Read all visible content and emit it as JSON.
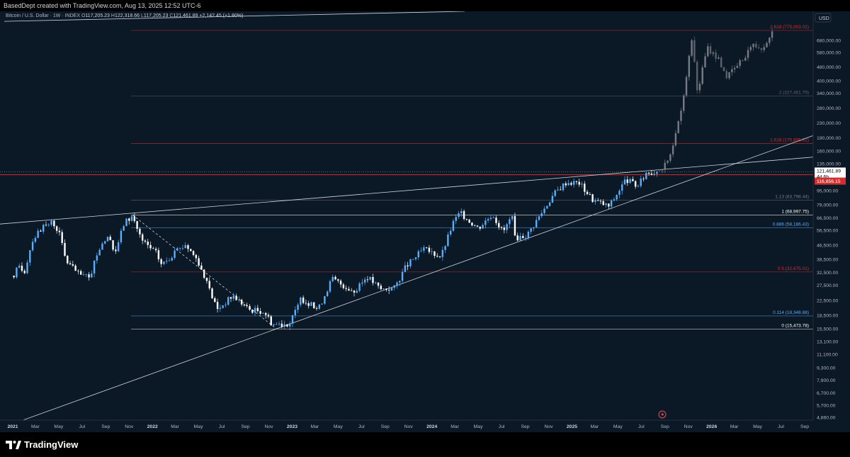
{
  "header": {
    "attribution": "BasedDept created with TradingView.com, Aug 13, 2025 12:52 UTC-6"
  },
  "legend": {
    "symbol": "Bitcoin / U.S. Dollar · 1W · INDEX",
    "open_label": "O",
    "open": "117,205.23",
    "high_label": "H",
    "high": "122,318.66",
    "low_label": "L",
    "low": "117,205.23",
    "close_label": "C",
    "close": "121,461.89",
    "change": "+2,142.45 (+1.80%)"
  },
  "footer": {
    "brand": "TradingView"
  },
  "colors": {
    "background": "#0b1826",
    "up_candle": "#5aaefc",
    "down_candle": "#ffffff",
    "projection_candle": "#787b86",
    "fib_line": "#5b6270",
    "red_line": "#d32f2f"
  },
  "chart_data": {
    "type": "candlestick",
    "scale": "log",
    "currency_label": "USD",
    "y_ticks": [
      4860,
      5700,
      6700,
      7900,
      9300,
      11100,
      13100,
      15500,
      18500,
      22500,
      27500,
      32500,
      38500,
      46500,
      56500,
      66500,
      79000,
      95000,
      135000,
      160000,
      190000,
      230000,
      280000,
      340000,
      400000,
      480000,
      580000,
      680000
    ],
    "y_tick_labels": [
      "4,860.00",
      "5,700.00",
      "6,700.00",
      "7,900.00",
      "9,300.00",
      "11,100.00",
      "13,100.00",
      "15,500.00",
      "18,500.00",
      "22,500.00",
      "27,500.00",
      "32,500.00",
      "38,500.00",
      "46,500.00",
      "56,500.00",
      "66,500.00",
      "79,000.00",
      "95,000.00",
      "135,000.00",
      "160,000.00",
      "190,000.00",
      "230,000.00",
      "280,000.00",
      "340,000.00",
      "400,000.00",
      "480,000.00",
      "580,000.00",
      "680,000.00"
    ],
    "x_ticks": [
      {
        "label": "2021",
        "date": "2021-01-01",
        "bold": true
      },
      {
        "label": "Mar",
        "date": "2021-03-01"
      },
      {
        "label": "May",
        "date": "2021-05-01"
      },
      {
        "label": "Jul",
        "date": "2021-07-01"
      },
      {
        "label": "Sep",
        "date": "2021-09-01"
      },
      {
        "label": "Nov",
        "date": "2021-11-01"
      },
      {
        "label": "2022",
        "date": "2022-01-01",
        "bold": true
      },
      {
        "label": "Mar",
        "date": "2022-03-01"
      },
      {
        "label": "May",
        "date": "2022-05-01"
      },
      {
        "label": "Jul",
        "date": "2022-07-01"
      },
      {
        "label": "Sep",
        "date": "2022-09-01"
      },
      {
        "label": "Nov",
        "date": "2022-11-01"
      },
      {
        "label": "2023",
        "date": "2023-01-01",
        "bold": true
      },
      {
        "label": "Mar",
        "date": "2023-03-01"
      },
      {
        "label": "May",
        "date": "2023-05-01"
      },
      {
        "label": "Jul",
        "date": "2023-07-01"
      },
      {
        "label": "Sep",
        "date": "2023-09-01"
      },
      {
        "label": "Nov",
        "date": "2023-11-01"
      },
      {
        "label": "2024",
        "date": "2024-01-01",
        "bold": true
      },
      {
        "label": "Mar",
        "date": "2024-03-01"
      },
      {
        "label": "May",
        "date": "2024-05-01"
      },
      {
        "label": "Jul",
        "date": "2024-07-01"
      },
      {
        "label": "Sep",
        "date": "2024-09-01"
      },
      {
        "label": "Nov",
        "date": "2024-11-01"
      },
      {
        "label": "2025",
        "date": "2025-01-01",
        "bold": true
      },
      {
        "label": "Mar",
        "date": "2025-03-01"
      },
      {
        "label": "May",
        "date": "2025-05-01"
      },
      {
        "label": "Jul",
        "date": "2025-07-01"
      },
      {
        "label": "Sep",
        "date": "2025-09-01"
      },
      {
        "label": "Nov",
        "date": "2025-11-01"
      },
      {
        "label": "2026",
        "date": "2026-01-01",
        "bold": true
      },
      {
        "label": "Mar",
        "date": "2026-03-01"
      },
      {
        "label": "May",
        "date": "2026-05-01"
      },
      {
        "label": "Jul",
        "date": "2026-07-01"
      },
      {
        "label": "Sep",
        "date": "2026-09-01"
      }
    ],
    "anchors": [
      {
        "date": "2021-01-01",
        "price": 28000
      },
      {
        "date": "2021-01-15",
        "price": 36000
      },
      {
        "date": "2021-02-01",
        "price": 33000
      },
      {
        "date": "2021-02-20",
        "price": 49000
      },
      {
        "date": "2021-03-10",
        "price": 56000
      },
      {
        "date": "2021-04-14",
        "price": 63000
      },
      {
        "date": "2021-05-01",
        "price": 56000
      },
      {
        "date": "2021-05-20",
        "price": 38000
      },
      {
        "date": "2021-06-20",
        "price": 32000
      },
      {
        "date": "2021-07-20",
        "price": 30000
      },
      {
        "date": "2021-08-20",
        "price": 48000
      },
      {
        "date": "2021-09-07",
        "price": 51000
      },
      {
        "date": "2021-09-25",
        "price": 42000
      },
      {
        "date": "2021-10-20",
        "price": 63000
      },
      {
        "date": "2021-11-10",
        "price": 68000
      },
      {
        "date": "2021-12-05",
        "price": 49000
      },
      {
        "date": "2022-01-10",
        "price": 42000
      },
      {
        "date": "2022-01-25",
        "price": 36000
      },
      {
        "date": "2022-03-28",
        "price": 47000
      },
      {
        "date": "2022-04-30",
        "price": 38000
      },
      {
        "date": "2022-05-20",
        "price": 29000
      },
      {
        "date": "2022-06-20",
        "price": 20000
      },
      {
        "date": "2022-07-30",
        "price": 24000
      },
      {
        "date": "2022-09-10",
        "price": 20000
      },
      {
        "date": "2022-10-20",
        "price": 19500
      },
      {
        "date": "2022-11-10",
        "price": 16500
      },
      {
        "date": "2022-12-25",
        "price": 16600
      },
      {
        "date": "2023-01-25",
        "price": 23000
      },
      {
        "date": "2023-03-10",
        "price": 20000
      },
      {
        "date": "2023-04-15",
        "price": 30000
      },
      {
        "date": "2023-06-15",
        "price": 25000
      },
      {
        "date": "2023-07-15",
        "price": 31000
      },
      {
        "date": "2023-08-20",
        "price": 26000
      },
      {
        "date": "2023-09-25",
        "price": 26500
      },
      {
        "date": "2023-10-25",
        "price": 35000
      },
      {
        "date": "2023-12-10",
        "price": 44000
      },
      {
        "date": "2024-01-25",
        "price": 40000
      },
      {
        "date": "2024-02-25",
        "price": 62000
      },
      {
        "date": "2024-03-14",
        "price": 71000
      },
      {
        "date": "2024-05-01",
        "price": 58000
      },
      {
        "date": "2024-06-07",
        "price": 70000
      },
      {
        "date": "2024-07-05",
        "price": 55000
      },
      {
        "date": "2024-07-28",
        "price": 68000
      },
      {
        "date": "2024-08-05",
        "price": 51000
      },
      {
        "date": "2024-09-06",
        "price": 53000
      },
      {
        "date": "2024-09-30",
        "price": 64000
      },
      {
        "date": "2024-11-15",
        "price": 91000
      },
      {
        "date": "2024-12-17",
        "price": 106000
      },
      {
        "date": "2025-01-20",
        "price": 105000
      },
      {
        "date": "2025-02-25",
        "price": 84000
      },
      {
        "date": "2025-04-08",
        "price": 77000
      },
      {
        "date": "2025-05-22",
        "price": 110000
      },
      {
        "date": "2025-06-22",
        "price": 100000
      },
      {
        "date": "2025-07-14",
        "price": 120000
      },
      {
        "date": "2025-08-11",
        "price": 121461
      }
    ],
    "projection_anchors": [
      {
        "date": "2025-08-20",
        "price": 125000
      },
      {
        "date": "2025-09-15",
        "price": 150000
      },
      {
        "date": "2025-10-05",
        "price": 230000
      },
      {
        "date": "2025-10-25",
        "price": 380000
      },
      {
        "date": "2025-11-10",
        "price": 700000
      },
      {
        "date": "2025-11-25",
        "price": 340000
      },
      {
        "date": "2025-12-20",
        "price": 620000
      },
      {
        "date": "2026-01-20",
        "price": 530000
      },
      {
        "date": "2026-02-10",
        "price": 420000
      },
      {
        "date": "2026-03-20",
        "price": 520000
      },
      {
        "date": "2026-04-15",
        "price": 640000
      },
      {
        "date": "2026-05-15",
        "price": 620000
      },
      {
        "date": "2026-06-05",
        "price": 760000
      }
    ],
    "fib_levels": [
      {
        "label": "2.618 (775,003.02)",
        "price": 775003.02,
        "color": "#d32f2f",
        "dashed": false
      },
      {
        "label": "2 (327,461.79)",
        "price": 327461.79,
        "color": "#5b6270",
        "dashed": false
      },
      {
        "label": "1.618 (175,805.82)",
        "price": 175805.82,
        "color": "#d32f2f",
        "dashed": false
      },
      {
        "label": "1.13 (83,798.44)",
        "price": 83798.44,
        "color": "#787b86",
        "dashed": false
      },
      {
        "label": "1 (68,997.75)",
        "price": 68997.75,
        "color": "#ffffff",
        "dashed": false
      },
      {
        "label": "0.886 (58,186.43)",
        "price": 58186.43,
        "color": "#5aaefc",
        "dashed": false
      },
      {
        "label": "0.5 (32,675.01)",
        "price": 32675.01,
        "color": "#d32f2f",
        "dashed": false
      },
      {
        "label": "0.114 (18,348.88)",
        "price": 18348.88,
        "color": "#5aaefc",
        "dashed": false
      },
      {
        "label": "0 (15,473.78)",
        "price": 15473.78,
        "color": "#ffffff",
        "dashed": false
      }
    ],
    "trend_lines": [
      {
        "from": {
          "date": "2021-11-10",
          "price": 69000
        },
        "to": {
          "date": "2022-11-21",
          "price": 15500
        },
        "dashed": true
      },
      {
        "from": {
          "date": "2021-04-14",
          "price": 64800
        },
        "to": {
          "date": "2025-07-14",
          "price": 123000
        },
        "extend": true
      },
      {
        "from": {
          "date": "2022-11-21",
          "price": 15500
        },
        "to": {
          "date": "2025-04-08",
          "price": 74500
        },
        "extend": true
      }
    ],
    "current_price": {
      "value": 121461.89,
      "label": "121,461.89",
      "countdown": "4d 6h"
    },
    "red_level": {
      "value": 116856.15,
      "label": "116,856.15"
    }
  }
}
